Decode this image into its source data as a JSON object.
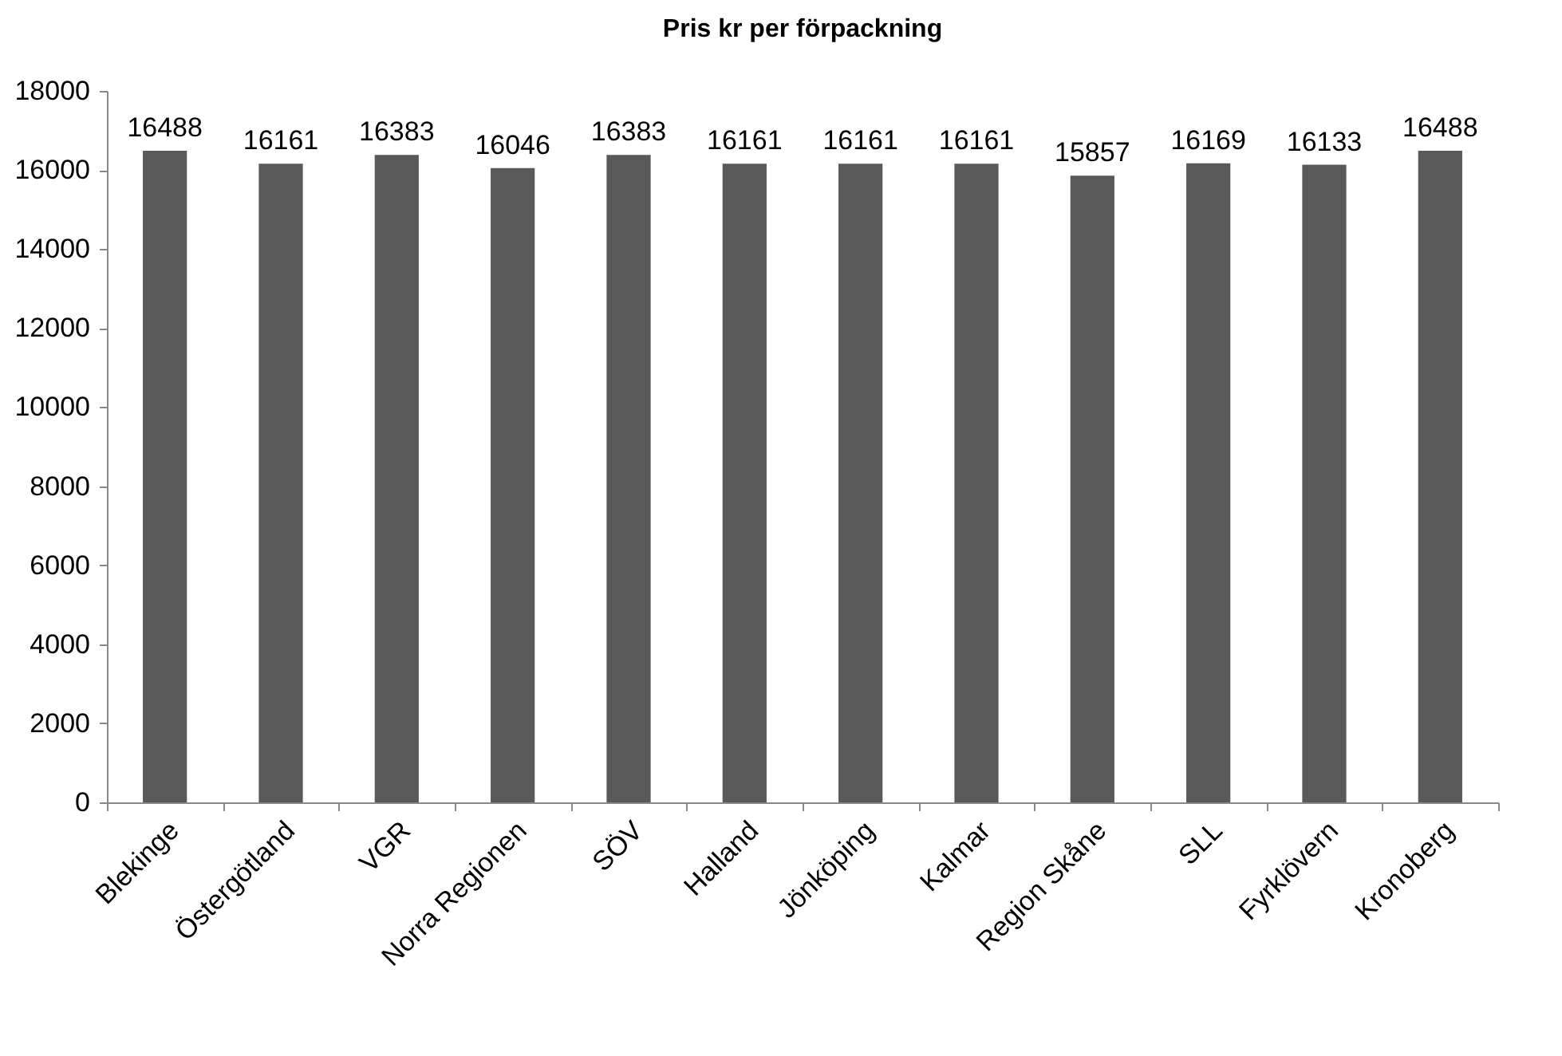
{
  "chart_data": {
    "type": "bar",
    "title": "Pris kr per förpackning",
    "categories": [
      "Blekinge",
      "Östergötland",
      "VGR",
      "Norra Regionen",
      "SÖV",
      "Halland",
      "Jönköping",
      "Kalmar",
      "Region Skåne",
      "SLL",
      "Fyrklövern",
      "Kronoberg"
    ],
    "values": [
      16488,
      16161,
      16383,
      16046,
      16383,
      16161,
      16161,
      16161,
      15857,
      16169,
      16133,
      16488
    ],
    "color": "#595959",
    "ylim": [
      0,
      18000
    ],
    "yticks": [
      0,
      2000,
      4000,
      6000,
      8000,
      10000,
      12000,
      14000,
      16000,
      18000
    ],
    "data_labels": true
  }
}
